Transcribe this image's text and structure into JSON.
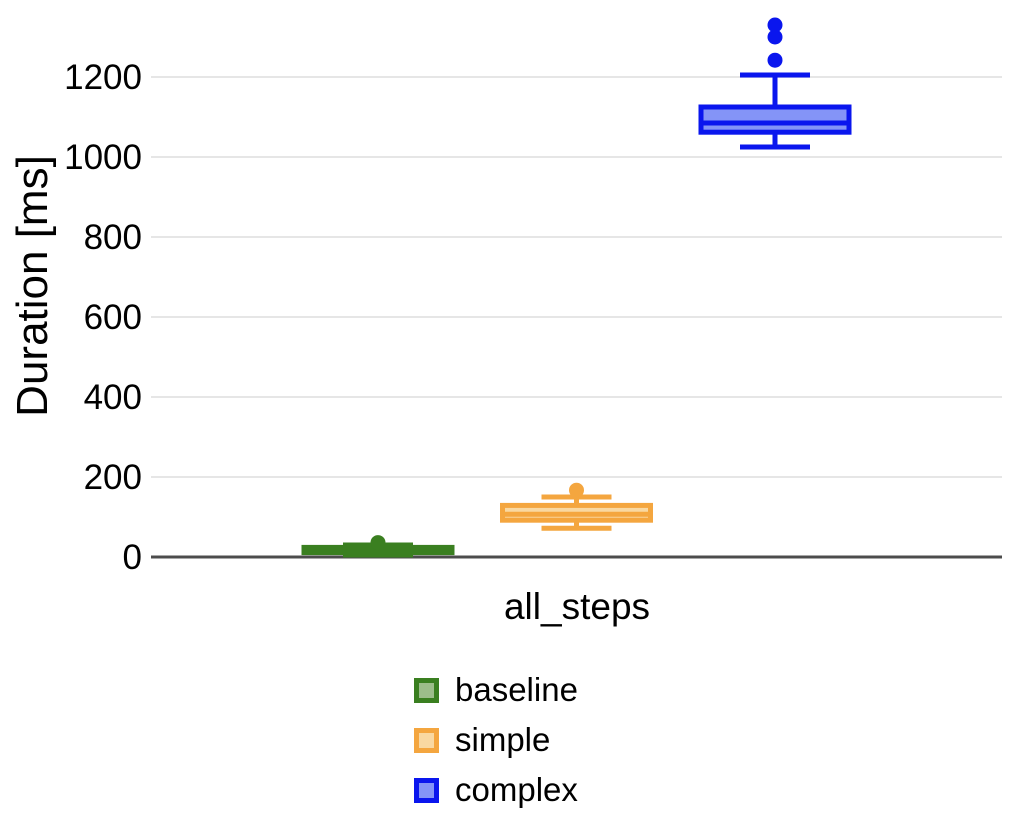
{
  "chart_data": {
    "type": "boxplot",
    "title": "",
    "xlabel": "all_steps",
    "ylabel": "Duration [ms]",
    "categories": [
      "all_steps"
    ],
    "yticks": [
      0,
      200,
      400,
      600,
      800,
      1000,
      1200
    ],
    "ylim": [
      0,
      1390
    ],
    "grid": true,
    "legend_position": "bottom-center",
    "series": [
      {
        "name": "baseline",
        "stroke": "#3a7f20",
        "fill": "#9cbd8a",
        "box": {
          "min": 5,
          "q1": 11,
          "median": 16,
          "q3": 24,
          "max": 30
        },
        "outliers": [
          36
        ]
      },
      {
        "name": "simple",
        "stroke": "#f4a63f",
        "fill": "#f9d8a1",
        "box": {
          "min": 72,
          "q1": 92,
          "median": 107,
          "q3": 129,
          "max": 150
        },
        "outliers": [
          167
        ]
      },
      {
        "name": "complex",
        "stroke": "#0a16ee",
        "fill": "#8494f7",
        "box": {
          "min": 1025,
          "q1": 1062,
          "median": 1085,
          "q3": 1125,
          "max": 1205
        },
        "outliers": [
          1242,
          1300,
          1330
        ]
      }
    ],
    "colors": {
      "grid": "#e6e6e6",
      "axis": "#4c4c4c",
      "text": "#000000",
      "background": "#ffffff"
    }
  }
}
